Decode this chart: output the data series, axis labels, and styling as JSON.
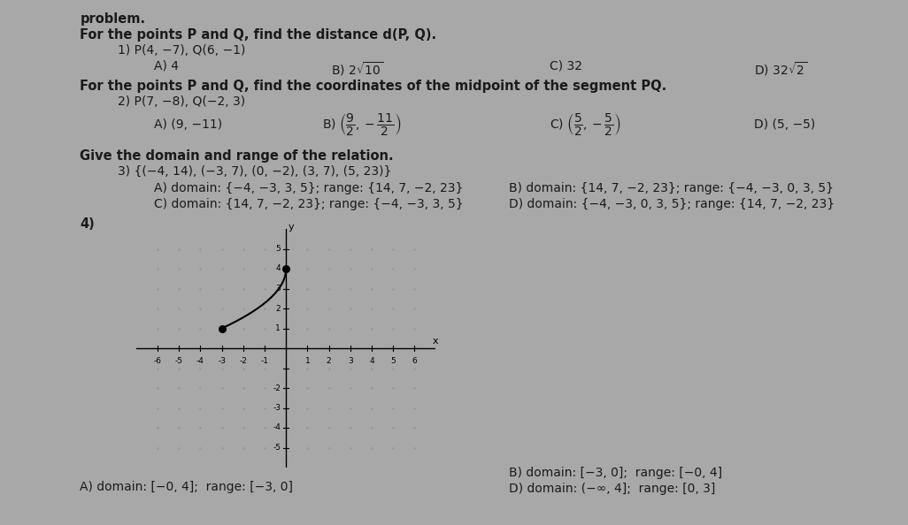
{
  "bg_color_left": "#a8a8a8",
  "bg_color_right": "#c8c4bc",
  "paper_color": "#e8e4dc",
  "title": "problem.",
  "q1_header": "For the points P and Q, find the distance d(P, Q).",
  "q1_sub": "1) P(4, −7), Q(6, −1)",
  "q1_A": "A) 4",
  "q1_C": "C) 32",
  "q1_D": "D) 32√2",
  "q2_header": "For the points P and Q, find the coordinates of the midpoint of the segment PQ.",
  "q2_sub": "2) P(7, −8), Q(−2, 3)",
  "q2_A": "A) (9, −11)",
  "q2_D": "D) (5, −5)",
  "q3_header": "Give the domain and range of the relation.",
  "q3_sub": "3) {(−4, 14), (−3, 7), (0, −2), (3, 7), (5, 23)}",
  "q3_A": "A) domain: {−4, −3, 3, 5}; range: {14, 7, −2, 23}",
  "q3_C": "C) domain: {14, 7, −2, 23}; range: {−4, −3, 3, 5}",
  "q3_B": "B) domain: {14, 7, −2, 23}; range: {−4, −3, 0, 3, 5}",
  "q3_D": "D) domain: {−4, −3, 0, 3, 5}; range: {14, 7, −2, 23}",
  "q4_label": "4)",
  "q4_A": "A) domain: [−0, 4];  range: [−3, 0]",
  "q4_B": "B) domain: [−3, 0];  range: [−0, 4]",
  "q4_D": "D) domain: (−∞, 4];  range: [0, 3]",
  "text_color": "#1a1a1a",
  "dot_color": "#999999"
}
